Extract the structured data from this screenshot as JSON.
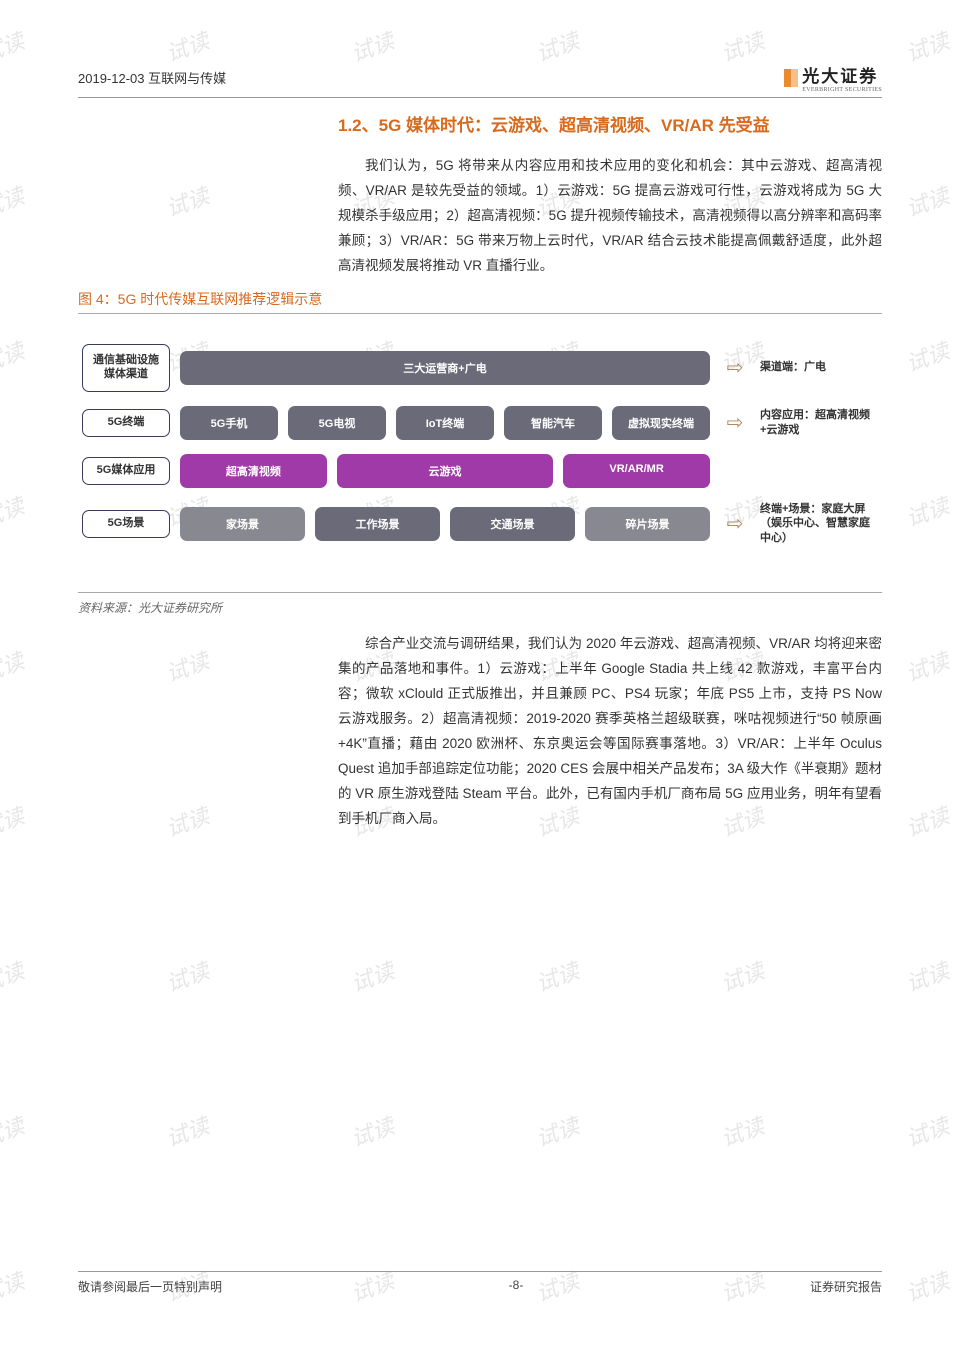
{
  "header": {
    "date_category": "2019-12-03  互联网与传媒"
  },
  "logo": {
    "cn": "光大证券",
    "en": "EVERBRIGHT SECURITIES"
  },
  "section_title": "1.2、5G 媒体时代：云游戏、超高清视频、VR/AR 先受益",
  "paragraph1": "我们认为，5G 将带来从内容应用和技术应用的变化和机会：其中云游戏、超高清视频、VR/AR 是较先受益的领域。1）云游戏：5G 提高云游戏可行性，云游戏将成为 5G 大规模杀手级应用；2）超高清视频：5G 提升视频传输技术，高清视频得以高分辨率和高码率兼顾；3）VR/AR：5G 带来万物上云时代，VR/AR 结合云技术能提高佩戴舒适度，此外超高清视频发展将推动 VR 直播行业。",
  "figure_title": "图 4：5G 时代传媒互联网推荐逻辑示意",
  "diagram": {
    "arrow_color": "#b08a63",
    "rows": [
      {
        "label": "通信基础设施\n媒体渠道",
        "boxes": [
          {
            "text": "三大运营商+广电",
            "bg": "#6a6a78",
            "flex": 1
          }
        ],
        "arrow": true,
        "outcome": "渠道端：广电"
      },
      {
        "label": "5G终端",
        "boxes": [
          {
            "text": "5G手机",
            "bg": "#6a6a78"
          },
          {
            "text": "5G电视",
            "bg": "#6a6a78"
          },
          {
            "text": "IoT终端",
            "bg": "#6a6a78"
          },
          {
            "text": "智能汽车",
            "bg": "#6a6a78"
          },
          {
            "text": "虚拟现实终端",
            "bg": "#6a6a78"
          }
        ],
        "arrow": true,
        "outcome": "内容应用：超高清视频+云游戏"
      },
      {
        "label": "5G媒体应用",
        "boxes": [
          {
            "text": "超高清视频",
            "bg": "#a03aa8",
            "flex": 1.2
          },
          {
            "text": "云游戏",
            "bg": "#a03aa8",
            "flex": 1.8
          },
          {
            "text": "VR/AR/MR",
            "bg": "#a03aa8",
            "flex": 1.2
          }
        ],
        "arrow": false,
        "outcome": ""
      },
      {
        "label": "5G场景",
        "boxes": [
          {
            "text": "家场景",
            "bg": "#888890"
          },
          {
            "text": "工作场景",
            "bg": "#6a6a78"
          },
          {
            "text": "交通场景",
            "bg": "#6a6a78"
          },
          {
            "text": "碎片场景",
            "bg": "#888890"
          }
        ],
        "arrow": true,
        "outcome": "终端+场景：家庭大屏（娱乐中心、智慧家庭中心）"
      }
    ]
  },
  "source": "资料来源：光大证券研究所",
  "paragraph2": "综合产业交流与调研结果，我们认为 2020 年云游戏、超高清视频、VR/AR 均将迎来密集的产品落地和事件。1）云游戏：上半年 Google Stadia 共上线 42 款游戏，丰富平台内容；微软 xClould 正式版推出，并且兼顾 PC、PS4 玩家；年底 PS5 上市，支持 PS Now 云游戏服务。2）超高清视频：2019-2020 赛季英格兰超级联赛，咪咕视频进行“50 帧原画+4K”直播；藉由 2020 欧洲杯、东京奥运会等国际赛事落地。3）VR/AR：上半年 Oculus Quest 追加手部追踪定位功能；2020 CES 会展中相关产品发布；3A 级大作《半衰期》题材的 VR 原生游戏登陆 Steam 平台。此外，已有国内手机厂商布局 5G 应用业务，明年有望看到手机厂商入局。",
  "footer": {
    "left": "敬请参阅最后一页特别声明",
    "center": "-8-",
    "right": "证券研究报告"
  },
  "watermark_text": "试读"
}
